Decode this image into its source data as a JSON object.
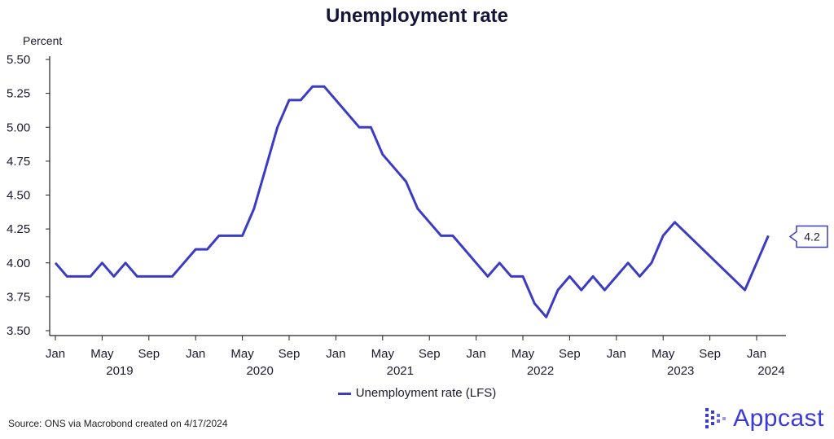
{
  "header": {
    "title": "Unemployment rate"
  },
  "chart_data": {
    "type": "line",
    "title": "Unemployment rate",
    "ylabel": "Percent",
    "xlabel": "",
    "ylim": [
      3.5,
      5.5
    ],
    "yticks": [
      "5.50",
      "5.25",
      "5.00",
      "4.75",
      "4.50",
      "4.25",
      "4.00",
      "3.75",
      "3.50"
    ],
    "xticks": [
      "Jan",
      "May",
      "Sep",
      "Jan",
      "May",
      "Sep",
      "Jan",
      "May",
      "Sep",
      "Jan",
      "May",
      "Sep",
      "Jan",
      "May",
      "Sep",
      "Jan"
    ],
    "years": [
      "2019",
      "2020",
      "2021",
      "2022",
      "2023",
      "2024"
    ],
    "grid": false,
    "legend_position": "bottom",
    "series": [
      {
        "name": "Unemployment rate (LFS)",
        "color": "#3b3bc4",
        "start": "2019-01",
        "values": [
          4.0,
          3.9,
          3.9,
          3.9,
          4.0,
          3.9,
          4.0,
          3.9,
          3.9,
          3.9,
          3.9,
          4.0,
          4.1,
          4.1,
          4.2,
          4.2,
          4.2,
          4.4,
          4.7,
          5.0,
          5.2,
          5.2,
          5.3,
          5.3,
          5.2,
          5.1,
          5.0,
          5.0,
          4.8,
          4.7,
          4.6,
          4.4,
          4.3,
          4.2,
          4.2,
          4.1,
          4.0,
          3.9,
          4.0,
          3.9,
          3.9,
          3.7,
          3.6,
          3.8,
          3.9,
          3.8,
          3.9,
          3.8,
          3.9,
          4.0,
          3.9,
          4.0,
          4.2,
          4.3,
          null,
          null,
          null,
          null,
          null,
          3.8,
          4.0,
          4.2
        ]
      }
    ],
    "last_value_label": "4.2"
  },
  "legend": {
    "label": "Unemployment rate (LFS)"
  },
  "footer": {
    "source": "Source: ONS via Macrobond created on 4/17/2024",
    "brand": "Appcast",
    "brand_color": "#3a3ad8"
  }
}
